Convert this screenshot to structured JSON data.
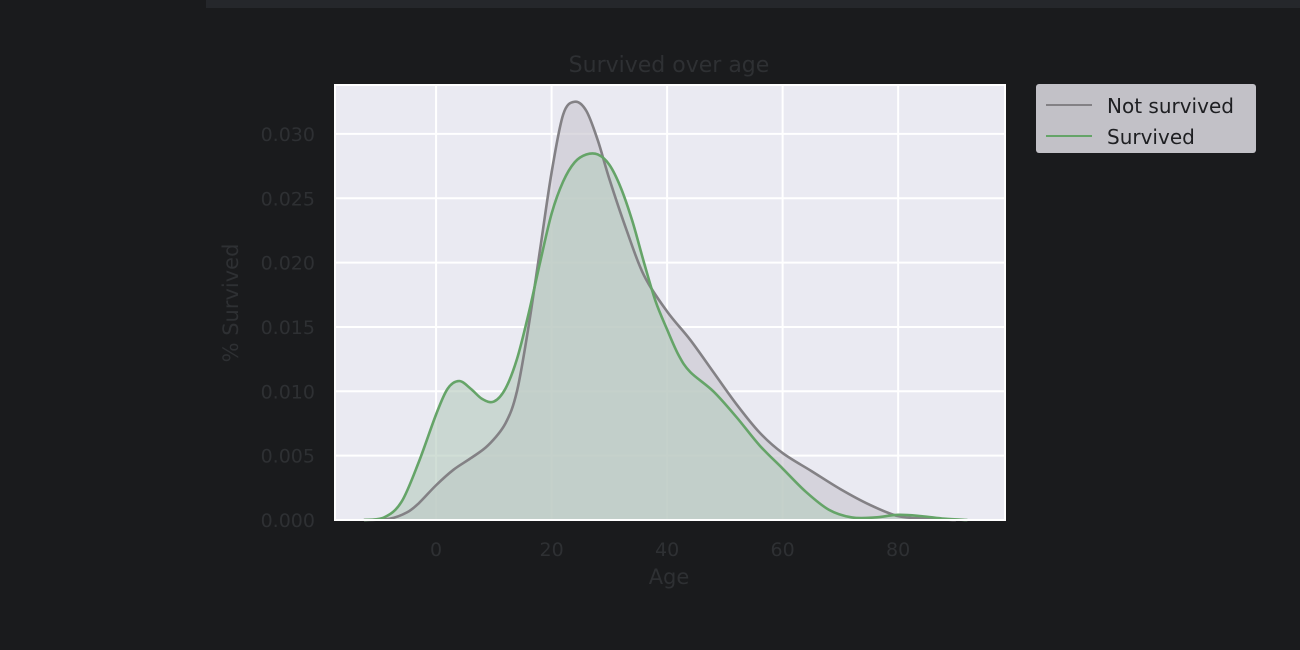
{
  "chart_data": {
    "type": "area",
    "title": "Survived over age",
    "xlabel": "Age",
    "ylabel": "% Survived",
    "xlim": [
      -17.5,
      98.5
    ],
    "ylim": [
      0,
      0.0338
    ],
    "x_ticks": [
      0,
      20,
      40,
      60,
      80
    ],
    "x_tick_labels": [
      "0",
      "20",
      "40",
      "60",
      "80"
    ],
    "y_ticks": [
      0.0,
      0.005,
      0.01,
      0.015,
      0.02,
      0.025,
      0.03
    ],
    "y_tick_labels": [
      "0.000",
      "0.005",
      "0.010",
      "0.015",
      "0.020",
      "0.025",
      "0.030"
    ],
    "grid": true,
    "legend_position": "outside-top-right",
    "series": [
      {
        "name": "Not survived",
        "color": "#838185",
        "fill": "#c9c6cf",
        "points": [
          [
            -12.5,
            0.0
          ],
          [
            -8,
            0.0001
          ],
          [
            -5,
            0.0006
          ],
          [
            -3,
            0.0013
          ],
          [
            0,
            0.0027
          ],
          [
            3,
            0.0039
          ],
          [
            6,
            0.0048
          ],
          [
            9,
            0.0058
          ],
          [
            12,
            0.0075
          ],
          [
            14,
            0.01
          ],
          [
            16,
            0.015
          ],
          [
            18,
            0.021
          ],
          [
            20,
            0.027
          ],
          [
            22,
            0.0315
          ],
          [
            24,
            0.0325
          ],
          [
            26,
            0.0318
          ],
          [
            28,
            0.0295
          ],
          [
            30,
            0.0265
          ],
          [
            33,
            0.0225
          ],
          [
            36,
            0.019
          ],
          [
            40,
            0.0162
          ],
          [
            44,
            0.014
          ],
          [
            48,
            0.0115
          ],
          [
            52,
            0.009
          ],
          [
            56,
            0.0068
          ],
          [
            60,
            0.0052
          ],
          [
            65,
            0.0038
          ],
          [
            70,
            0.0024
          ],
          [
            75,
            0.0012
          ],
          [
            80,
            0.0003
          ],
          [
            85,
            0.0001
          ],
          [
            90,
            0.0
          ]
        ]
      },
      {
        "name": "Survived",
        "color": "#65a468",
        "fill": "#b8cdc0",
        "points": [
          [
            -12.5,
            0.0
          ],
          [
            -9,
            0.0002
          ],
          [
            -6,
            0.0014
          ],
          [
            -3,
            0.0045
          ],
          [
            0,
            0.0082
          ],
          [
            2,
            0.0102
          ],
          [
            4,
            0.0108
          ],
          [
            6,
            0.0102
          ],
          [
            8,
            0.0094
          ],
          [
            10,
            0.0092
          ],
          [
            12,
            0.0102
          ],
          [
            14,
            0.0125
          ],
          [
            16,
            0.016
          ],
          [
            18,
            0.02
          ],
          [
            20,
            0.0238
          ],
          [
            22,
            0.0263
          ],
          [
            24,
            0.0278
          ],
          [
            26,
            0.0284
          ],
          [
            28,
            0.0284
          ],
          [
            30,
            0.0276
          ],
          [
            32,
            0.0258
          ],
          [
            34,
            0.0232
          ],
          [
            36,
            0.02
          ],
          [
            38,
            0.017
          ],
          [
            40,
            0.0148
          ],
          [
            42,
            0.0128
          ],
          [
            44,
            0.0115
          ],
          [
            48,
            0.01
          ],
          [
            52,
            0.008
          ],
          [
            56,
            0.0058
          ],
          [
            60,
            0.004
          ],
          [
            64,
            0.0022
          ],
          [
            68,
            0.0008
          ],
          [
            72,
            0.0002
          ],
          [
            76,
            0.0002
          ],
          [
            80,
            0.0004
          ],
          [
            84,
            0.0003
          ],
          [
            88,
            0.0001
          ],
          [
            92,
            0.0
          ]
        ]
      }
    ]
  }
}
